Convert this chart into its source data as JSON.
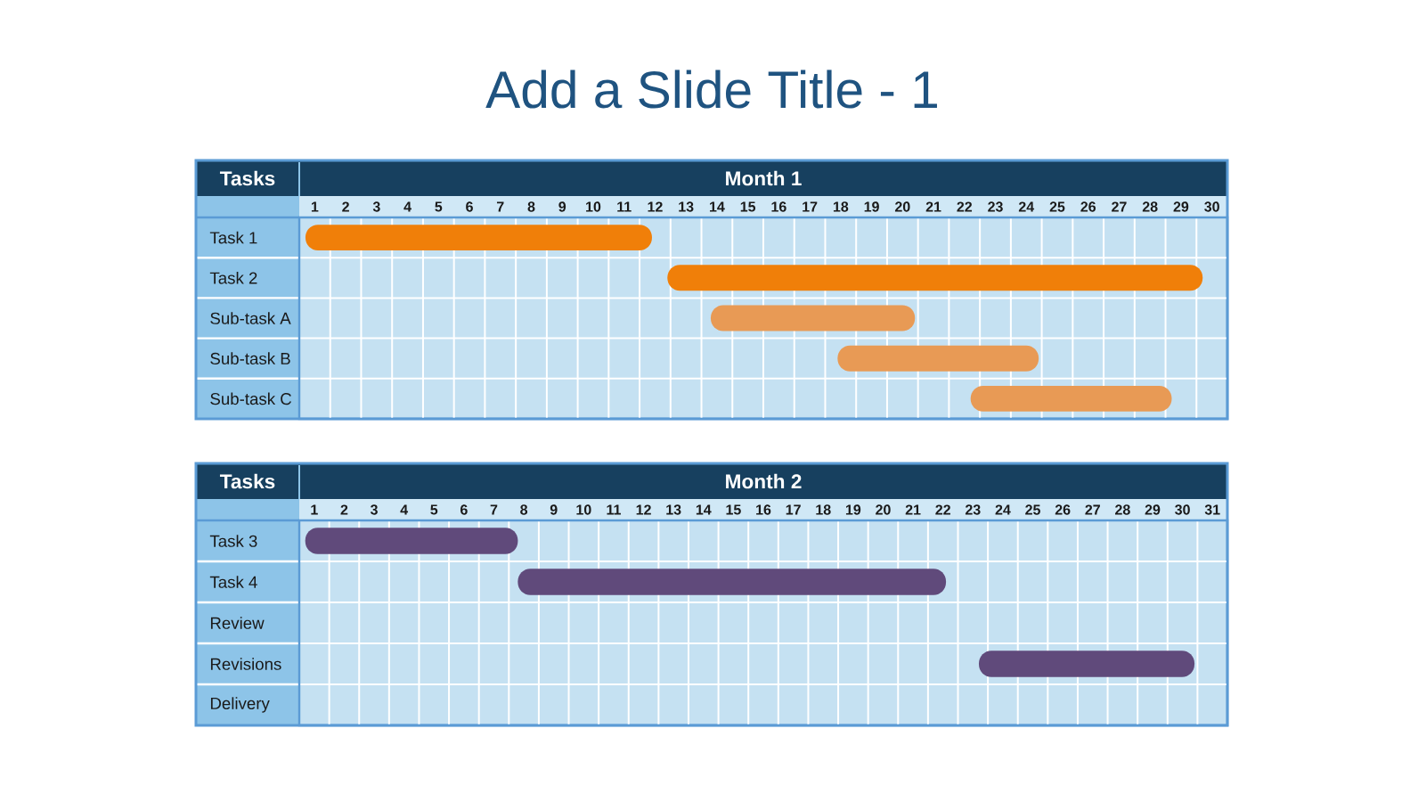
{
  "chart_data": [
    {
      "type": "bar",
      "orientation": "horizontal",
      "title": "Add a Slide Title - 1",
      "xlabel": "Month 1",
      "ylabel": "Tasks",
      "categories": [
        "Task 1",
        "Task 2",
        "Sub-task A",
        "Sub-task B",
        "Sub-task C"
      ],
      "base": [
        0.7,
        12.4,
        13.8,
        17.9,
        22.2
      ],
      "values": [
        11.2,
        17.3,
        6.6,
        6.5,
        6.5
      ],
      "colors": [
        "#f07f09",
        "#f07f09",
        "#e89a55",
        "#e89a55",
        "#e89a55"
      ],
      "xlim": [
        0.5,
        30.5
      ],
      "xticks": [
        1,
        2,
        3,
        4,
        5,
        6,
        7,
        8,
        9,
        10,
        11,
        12,
        13,
        14,
        15,
        16,
        17,
        18,
        19,
        20,
        21,
        22,
        23,
        24,
        25,
        26,
        27,
        28,
        29,
        30
      ],
      "grid": true
    },
    {
      "type": "bar",
      "orientation": "horizontal",
      "xlabel": "Month 2",
      "ylabel": "Tasks",
      "categories": [
        "Task 3",
        "Task 4",
        "Review",
        "Revisions",
        "Delivery"
      ],
      "base": [
        0.7,
        7.8,
        null,
        23.2,
        null
      ],
      "values": [
        7.1,
        14.3,
        null,
        7.2,
        null
      ],
      "colors": [
        "#604a7b",
        "#604a7b",
        null,
        "#604a7b",
        null
      ],
      "xlim": [
        0.5,
        31.5
      ],
      "xticks": [
        1,
        2,
        3,
        4,
        5,
        6,
        7,
        8,
        9,
        10,
        11,
        12,
        13,
        14,
        15,
        16,
        17,
        18,
        19,
        20,
        21,
        22,
        23,
        24,
        25,
        26,
        27,
        28,
        29,
        30,
        31
      ],
      "grid": true
    }
  ]
}
